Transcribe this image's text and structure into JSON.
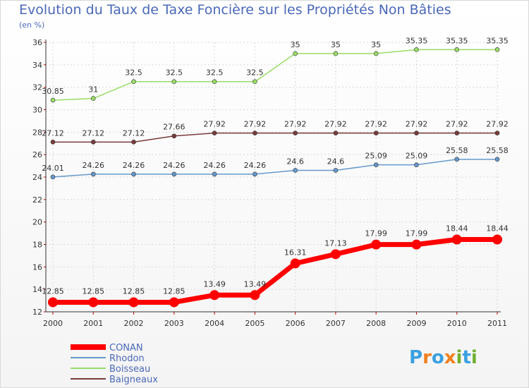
{
  "chart_data": {
    "type": "line",
    "title": "Evolution du Taux de Taxe Foncière sur les Propriétés Non Bâties",
    "subtitle": "(en %)",
    "x": [
      "2000",
      "2001",
      "2002",
      "2003",
      "2004",
      "2005",
      "2006",
      "2007",
      "2008",
      "2009",
      "2010",
      "2011"
    ],
    "ylim": [
      12,
      36
    ],
    "yticks": [
      12,
      14,
      16,
      18,
      20,
      22,
      24,
      26,
      28,
      30,
      32,
      34,
      36
    ],
    "grid": true,
    "legend_position": "bottom-left",
    "series": [
      {
        "name": "CONAN",
        "color": "#ff0000",
        "emphasis": true,
        "values": [
          12.85,
          12.85,
          12.85,
          12.85,
          13.49,
          13.49,
          16.31,
          17.13,
          17.99,
          17.99,
          18.44,
          18.44
        ],
        "labels": [
          "12.85",
          "12.85",
          "12.85",
          "12.85",
          "13.49",
          "13.49",
          "16.31",
          "17.13",
          "17.99",
          "17.99",
          "18.44",
          "18.44"
        ]
      },
      {
        "name": "Rhodon",
        "color": "#6699cc",
        "emphasis": false,
        "values": [
          24.01,
          24.26,
          24.26,
          24.26,
          24.26,
          24.26,
          24.6,
          24.6,
          25.09,
          25.09,
          25.58,
          25.58
        ],
        "labels": [
          "24.01",
          "24.26",
          "24.26",
          "24.26",
          "24.26",
          "24.26",
          "24.6",
          "24.6",
          "25.09",
          "25.09",
          "25.58",
          "25.58"
        ]
      },
      {
        "name": "Boisseau",
        "color": "#99dd66",
        "emphasis": false,
        "values": [
          30.85,
          31,
          32.5,
          32.5,
          32.5,
          32.5,
          35,
          35,
          35,
          35.35,
          35.35,
          35.35
        ],
        "labels": [
          "30.85",
          "31",
          "32.5",
          "32.5",
          "32.5",
          "32.5",
          "35",
          "35",
          "35",
          "35.35",
          "35.35",
          "35.35"
        ]
      },
      {
        "name": "Baigneaux",
        "color": "#7a3b3b",
        "emphasis": false,
        "values": [
          27.12,
          27.12,
          27.12,
          27.66,
          27.92,
          27.92,
          27.92,
          27.92,
          27.92,
          27.92,
          27.92,
          27.92
        ],
        "labels": [
          "27.12",
          "27.12",
          "27.12",
          "27.66",
          "27.92",
          "27.92",
          "27.92",
          "27.92",
          "27.92",
          "27.92",
          "27.92",
          "27.92"
        ]
      }
    ]
  },
  "branding": {
    "letters": [
      "P",
      "r",
      "o",
      "x",
      "i",
      "t",
      "i"
    ],
    "colors": [
      "#3aa0e0",
      "#f08020",
      "#3aa0e0",
      "#f08020",
      "#70b030",
      "#3aa0e0",
      "#70b030"
    ]
  }
}
